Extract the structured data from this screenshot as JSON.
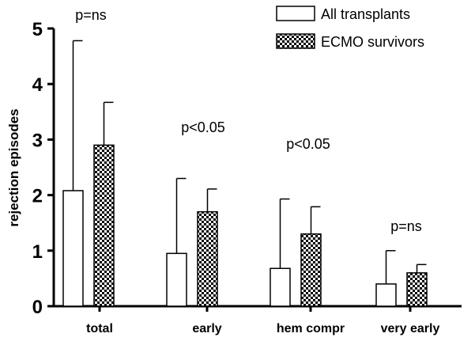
{
  "chart_data": {
    "type": "bar",
    "categories": [
      "total",
      "early",
      "hem compr",
      "very early"
    ],
    "series": [
      {
        "name": "All transplants",
        "values": [
          2.08,
          0.95,
          0.68,
          0.4
        ],
        "error_upper": [
          4.78,
          2.3,
          1.93,
          1.0
        ],
        "fill": "#ffffff"
      },
      {
        "name": "ECMO survivors",
        "values": [
          2.9,
          1.7,
          1.3,
          0.6
        ],
        "error_upper": [
          3.67,
          2.11,
          1.79,
          0.75
        ],
        "fill": "checkered"
      }
    ],
    "annotations": [
      "p=ns",
      "p<0.05",
      "p<0.05",
      "p=ns"
    ],
    "ylabel": "rejection episodes",
    "xlabel": "",
    "ylim": [
      0,
      5
    ],
    "yticks": [
      "0",
      "1",
      "2",
      "3",
      "4",
      "5"
    ],
    "grid": false,
    "legend_position": "top-right"
  }
}
